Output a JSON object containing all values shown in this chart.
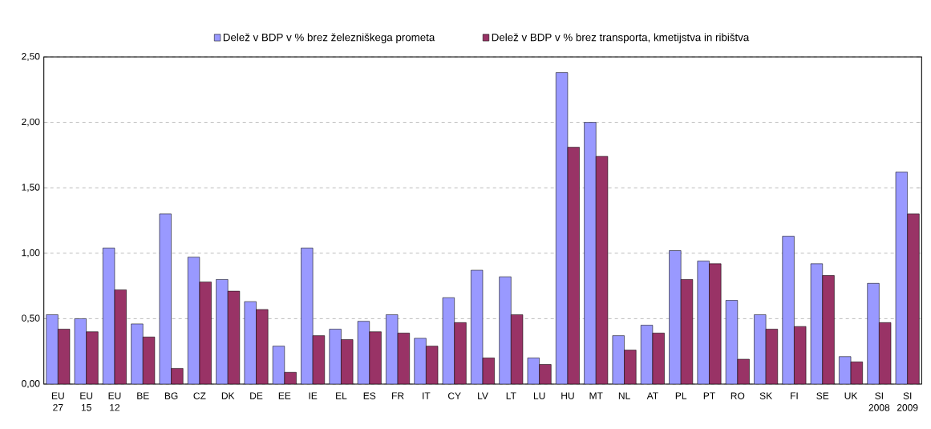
{
  "chart_data": {
    "type": "bar",
    "categories": [
      "EU 27",
      "EU 15",
      "EU 12",
      "BE",
      "BG",
      "CZ",
      "DK",
      "DE",
      "EE",
      "IE",
      "EL",
      "ES",
      "FR",
      "IT",
      "CY",
      "LV",
      "LT",
      "LU",
      "HU",
      "MT",
      "NL",
      "AT",
      "PL",
      "PT",
      "RO",
      "SK",
      "FI",
      "SE",
      "UK",
      "SI 2008",
      "SI 2009"
    ],
    "series": [
      {
        "name": "Delež v BDP v % brez železniškega prometa",
        "color": "#9999ff",
        "values": [
          0.53,
          0.5,
          1.04,
          0.46,
          1.3,
          0.97,
          0.8,
          0.63,
          0.29,
          1.04,
          0.42,
          0.48,
          0.53,
          0.35,
          0.66,
          0.87,
          0.82,
          0.2,
          2.38,
          2.0,
          0.37,
          0.45,
          1.02,
          0.94,
          0.64,
          0.53,
          1.13,
          0.92,
          0.21,
          0.77,
          1.62
        ]
      },
      {
        "name": "Delež v BDP v % brez transporta, kmetijstva in ribištva",
        "color": "#993366",
        "values": [
          0.42,
          0.4,
          0.72,
          0.36,
          0.12,
          0.78,
          0.71,
          0.57,
          0.09,
          0.37,
          0.34,
          0.4,
          0.39,
          0.29,
          0.47,
          0.2,
          0.53,
          0.15,
          1.81,
          1.74,
          0.26,
          0.39,
          0.8,
          0.92,
          0.19,
          0.42,
          0.44,
          0.83,
          0.17,
          0.47,
          1.3
        ]
      }
    ],
    "ylim": [
      0,
      2.5
    ],
    "yticks": [
      {
        "value": 0,
        "label": "0,00"
      },
      {
        "value": 0.5,
        "label": "0,50"
      },
      {
        "value": 1,
        "label": "1,00"
      },
      {
        "value": 1.5,
        "label": "1,50"
      },
      {
        "value": 2,
        "label": "2,00"
      },
      {
        "value": 2.5,
        "label": "2,50"
      }
    ],
    "grid": "y",
    "legend": "top"
  }
}
